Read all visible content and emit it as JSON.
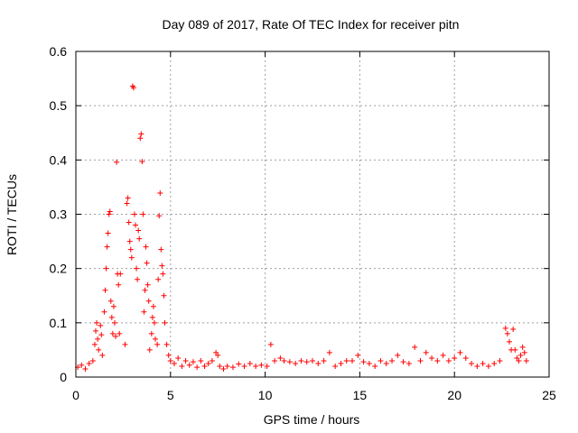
{
  "chart_data": {
    "type": "scatter",
    "title": "Day 089 of 2017, Rate Of TEC Index for receiver pitn",
    "xlabel": "GPS time / hours",
    "ylabel": "ROTI / TECUs",
    "xlim": [
      0,
      25
    ],
    "ylim": [
      0,
      0.6
    ],
    "xticks": [
      0,
      5,
      10,
      15,
      20,
      25
    ],
    "yticks": [
      0,
      0.1,
      0.2,
      0.3,
      0.4,
      0.5,
      0.6
    ],
    "xtick_labels": [
      "0",
      "5",
      "10",
      "15",
      "20",
      "25"
    ],
    "ytick_labels": [
      "0",
      "0.1",
      "0.2",
      "0.3",
      "0.4",
      "0.5",
      "0.6"
    ],
    "grid": true,
    "marker": "+",
    "color": "#ff0000",
    "series": [
      {
        "name": "ROTI",
        "points": [
          [
            0.1,
            0.018
          ],
          [
            0.3,
            0.022
          ],
          [
            0.5,
            0.015
          ],
          [
            0.7,
            0.025
          ],
          [
            0.9,
            0.03
          ],
          [
            1.0,
            0.06
          ],
          [
            1.05,
            0.085
          ],
          [
            1.1,
            0.1
          ],
          [
            1.15,
            0.07
          ],
          [
            1.2,
            0.05
          ],
          [
            1.3,
            0.095
          ],
          [
            1.35,
            0.078
          ],
          [
            1.4,
            0.04
          ],
          [
            1.5,
            0.12
          ],
          [
            1.55,
            0.16
          ],
          [
            1.6,
            0.2
          ],
          [
            1.65,
            0.24
          ],
          [
            1.7,
            0.265
          ],
          [
            1.75,
            0.3
          ],
          [
            1.8,
            0.305
          ],
          [
            1.85,
            0.14
          ],
          [
            1.9,
            0.11
          ],
          [
            1.95,
            0.08
          ],
          [
            2.0,
            0.13
          ],
          [
            2.05,
            0.1
          ],
          [
            2.1,
            0.075
          ],
          [
            2.15,
            0.396
          ],
          [
            2.2,
            0.19
          ],
          [
            2.25,
            0.17
          ],
          [
            2.3,
            0.08
          ],
          [
            2.35,
            0.19
          ],
          [
            2.6,
            0.06
          ],
          [
            2.7,
            0.32
          ],
          [
            2.75,
            0.33
          ],
          [
            2.8,
            0.285
          ],
          [
            2.85,
            0.25
          ],
          [
            2.9,
            0.235
          ],
          [
            2.95,
            0.22
          ],
          [
            3.0,
            0.536
          ],
          [
            3.05,
            0.533
          ],
          [
            3.1,
            0.3
          ],
          [
            3.15,
            0.28
          ],
          [
            3.2,
            0.2
          ],
          [
            3.25,
            0.18
          ],
          [
            3.3,
            0.27
          ],
          [
            3.35,
            0.255
          ],
          [
            3.4,
            0.44
          ],
          [
            3.45,
            0.448
          ],
          [
            3.5,
            0.397
          ],
          [
            3.55,
            0.3
          ],
          [
            3.6,
            0.12
          ],
          [
            3.65,
            0.16
          ],
          [
            3.7,
            0.24
          ],
          [
            3.75,
            0.21
          ],
          [
            3.8,
            0.17
          ],
          [
            3.85,
            0.14
          ],
          [
            3.9,
            0.05
          ],
          [
            4.0,
            0.08
          ],
          [
            4.05,
            0.11
          ],
          [
            4.1,
            0.13
          ],
          [
            4.15,
            0.1
          ],
          [
            4.2,
            0.07
          ],
          [
            4.3,
            0.06
          ],
          [
            4.35,
            0.18
          ],
          [
            4.4,
            0.297
          ],
          [
            4.45,
            0.339
          ],
          [
            4.5,
            0.235
          ],
          [
            4.55,
            0.205
          ],
          [
            4.6,
            0.19
          ],
          [
            4.65,
            0.15
          ],
          [
            4.7,
            0.1
          ],
          [
            4.8,
            0.06
          ],
          [
            4.9,
            0.04
          ],
          [
            5.0,
            0.03
          ],
          [
            5.2,
            0.025
          ],
          [
            5.4,
            0.035
          ],
          [
            5.6,
            0.02
          ],
          [
            5.8,
            0.03
          ],
          [
            6.0,
            0.022
          ],
          [
            6.2,
            0.028
          ],
          [
            6.4,
            0.018
          ],
          [
            6.6,
            0.03
          ],
          [
            6.8,
            0.02
          ],
          [
            7.0,
            0.025
          ],
          [
            7.2,
            0.03
          ],
          [
            7.4,
            0.045
          ],
          [
            7.5,
            0.04
          ],
          [
            7.6,
            0.02
          ],
          [
            7.8,
            0.015
          ],
          [
            8.0,
            0.02
          ],
          [
            8.3,
            0.018
          ],
          [
            8.6,
            0.024
          ],
          [
            8.9,
            0.02
          ],
          [
            9.2,
            0.025
          ],
          [
            9.5,
            0.02
          ],
          [
            9.8,
            0.022
          ],
          [
            10.1,
            0.02
          ],
          [
            10.3,
            0.06
          ],
          [
            10.5,
            0.03
          ],
          [
            10.8,
            0.035
          ],
          [
            11.0,
            0.03
          ],
          [
            11.3,
            0.028
          ],
          [
            11.6,
            0.025
          ],
          [
            11.9,
            0.03
          ],
          [
            12.2,
            0.028
          ],
          [
            12.5,
            0.03
          ],
          [
            12.8,
            0.025
          ],
          [
            13.1,
            0.03
          ],
          [
            13.4,
            0.045
          ],
          [
            13.7,
            0.02
          ],
          [
            14.0,
            0.025
          ],
          [
            14.3,
            0.03
          ],
          [
            14.6,
            0.03
          ],
          [
            14.9,
            0.04
          ],
          [
            15.2,
            0.028
          ],
          [
            15.5,
            0.025
          ],
          [
            15.8,
            0.02
          ],
          [
            16.1,
            0.03
          ],
          [
            16.4,
            0.025
          ],
          [
            16.7,
            0.03
          ],
          [
            17.0,
            0.04
          ],
          [
            17.3,
            0.028
          ],
          [
            17.6,
            0.025
          ],
          [
            17.9,
            0.055
          ],
          [
            18.2,
            0.03
          ],
          [
            18.5,
            0.045
          ],
          [
            18.8,
            0.035
          ],
          [
            19.1,
            0.03
          ],
          [
            19.4,
            0.04
          ],
          [
            19.7,
            0.03
          ],
          [
            20.0,
            0.035
          ],
          [
            20.3,
            0.045
          ],
          [
            20.6,
            0.035
          ],
          [
            20.9,
            0.025
          ],
          [
            21.2,
            0.02
          ],
          [
            21.5,
            0.025
          ],
          [
            21.8,
            0.02
          ],
          [
            22.1,
            0.025
          ],
          [
            22.4,
            0.03
          ],
          [
            22.7,
            0.09
          ],
          [
            22.8,
            0.08
          ],
          [
            22.9,
            0.065
          ],
          [
            23.0,
            0.05
          ],
          [
            23.1,
            0.088
          ],
          [
            23.2,
            0.05
          ],
          [
            23.3,
            0.035
          ],
          [
            23.4,
            0.03
          ],
          [
            23.5,
            0.04
          ],
          [
            23.6,
            0.055
          ],
          [
            23.7,
            0.045
          ],
          [
            23.8,
            0.03
          ]
        ]
      }
    ]
  }
}
